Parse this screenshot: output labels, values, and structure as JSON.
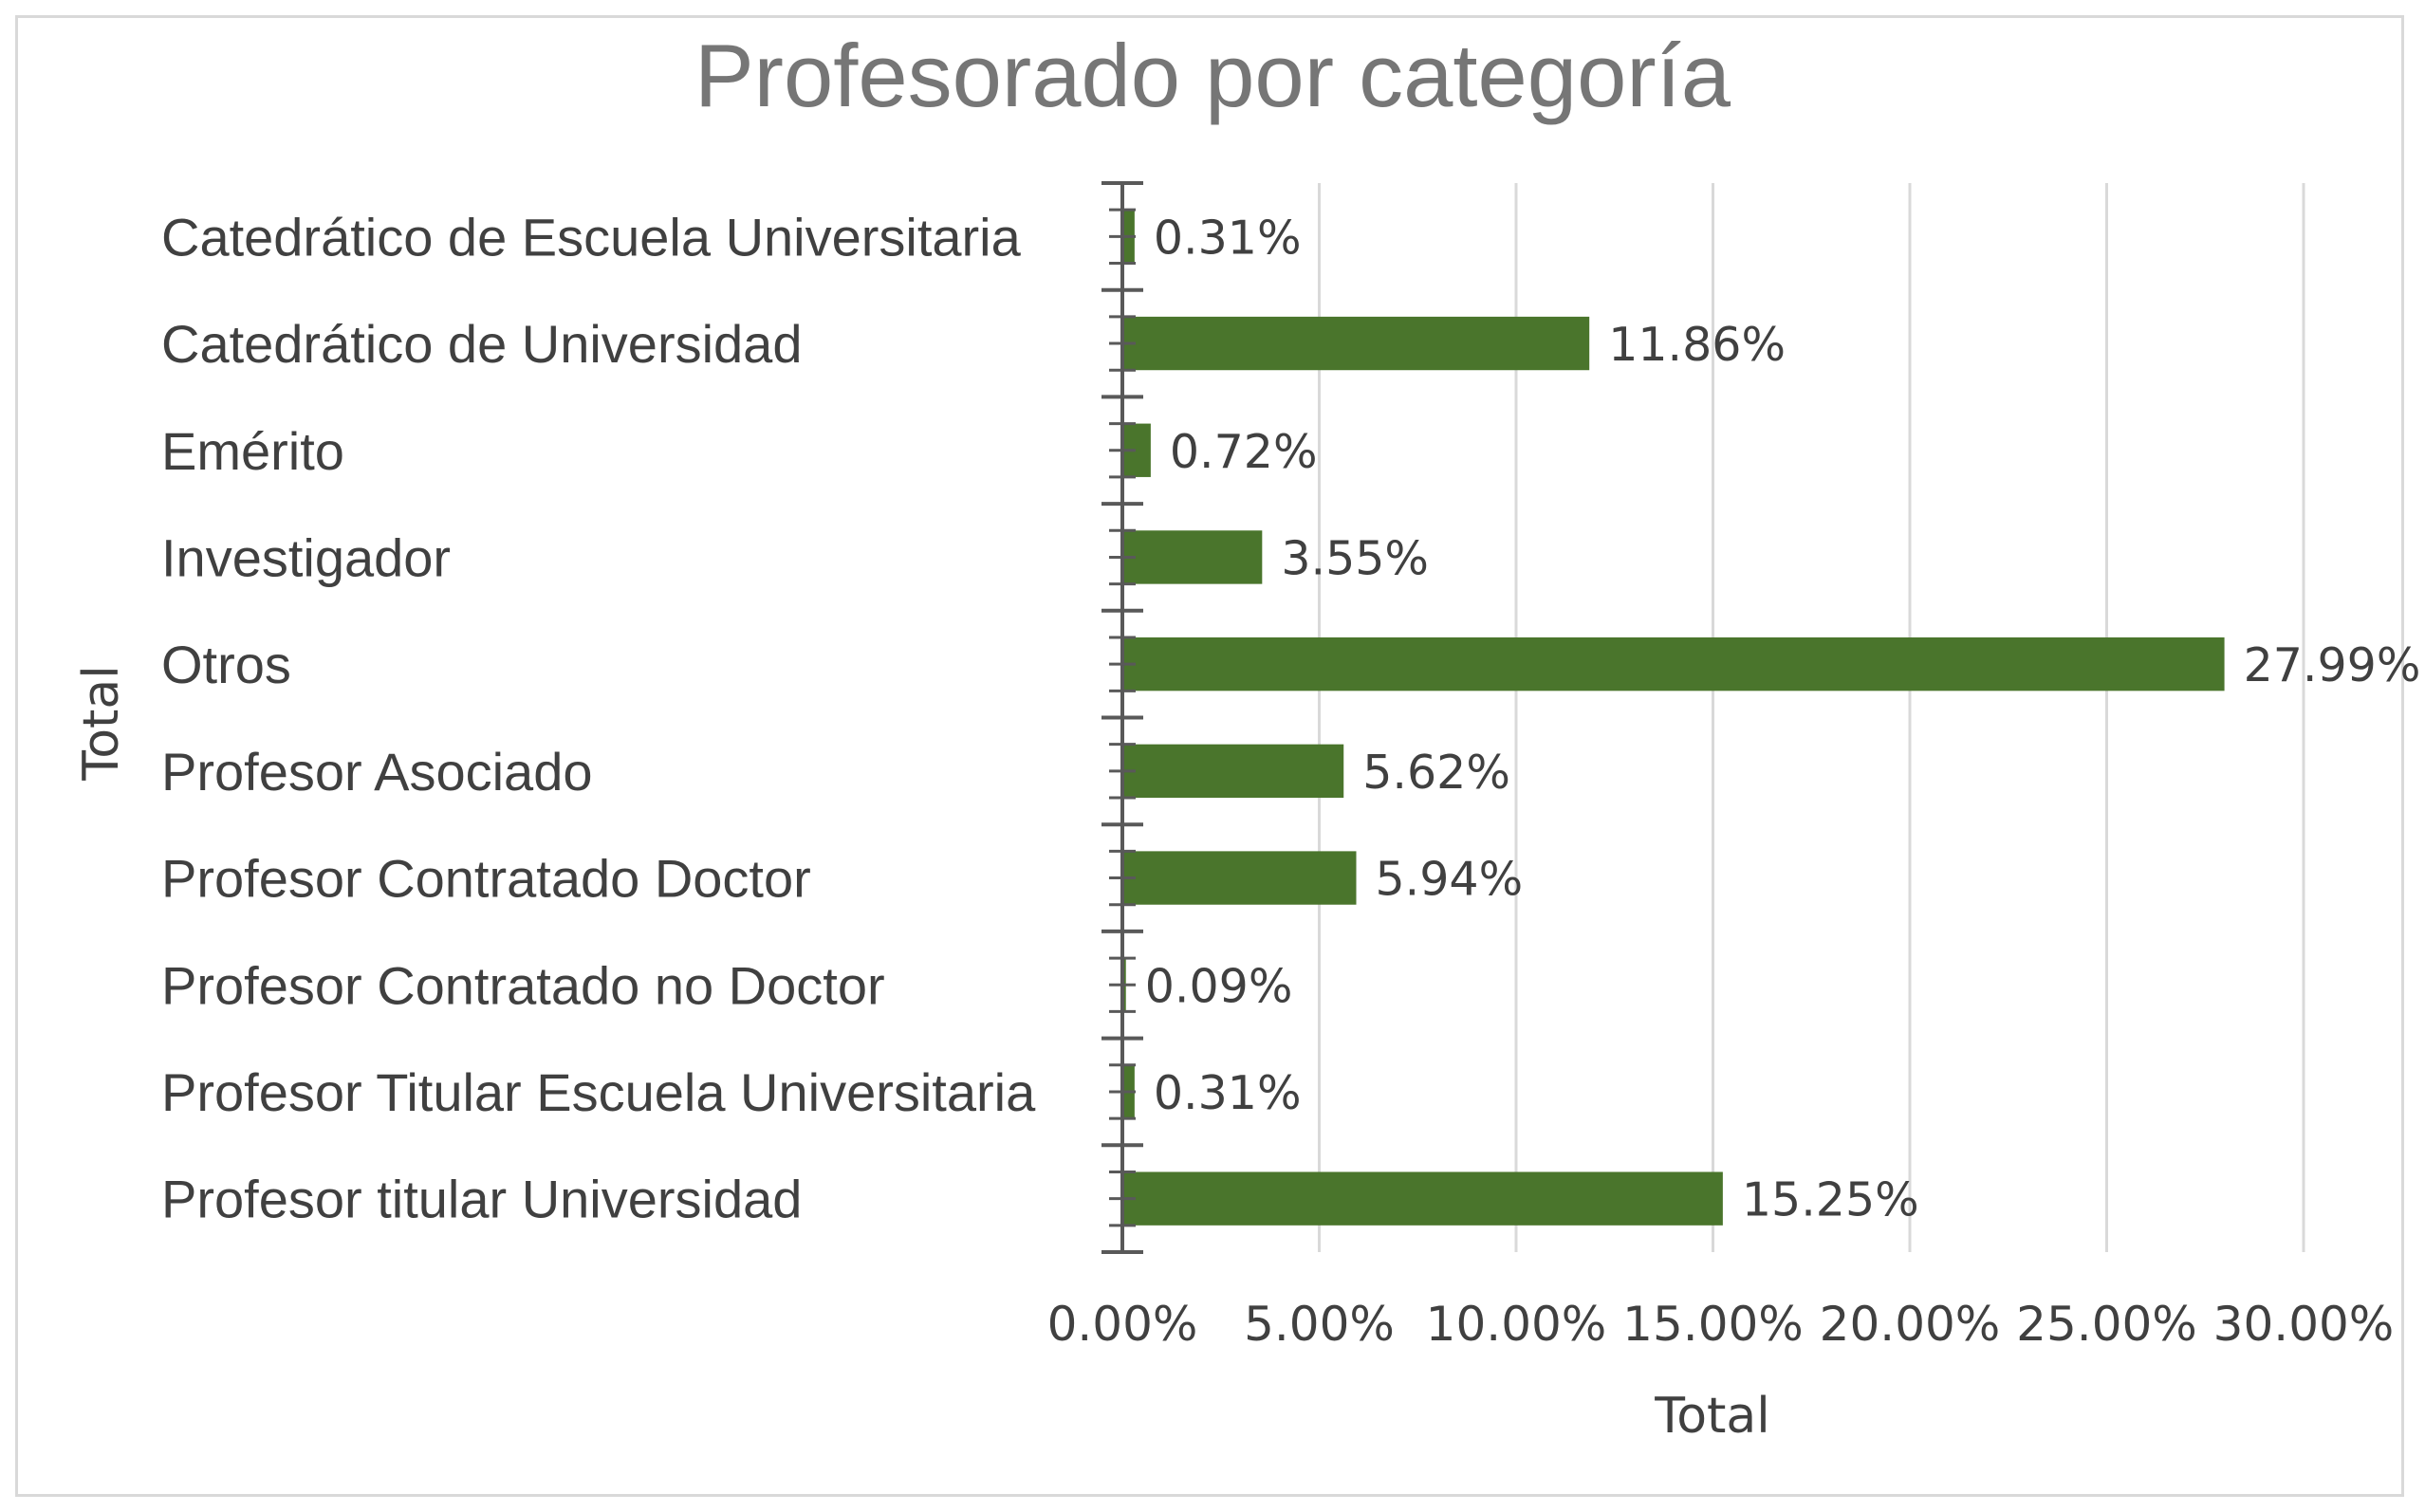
{
  "chart_data": {
    "type": "bar",
    "orientation": "horizontal",
    "title": "Profesorado por categoría",
    "xlabel": "Total",
    "ylabel": "Total",
    "categories": [
      "Catedrático de Escuela Universitaria",
      "Catedrático de Universidad",
      "Emérito",
      "Investigador",
      "Otros",
      "Profesor Asociado",
      "Profesor Contratado Doctor",
      "Profesor Contratado no Doctor",
      "Profesor Titular Escuela Universitaria",
      "Profesor titular Universidad"
    ],
    "values": [
      0.31,
      11.86,
      0.72,
      3.55,
      27.99,
      5.62,
      5.94,
      0.09,
      0.31,
      15.25
    ],
    "data_labels": [
      "0.31%",
      "11.86%",
      "0.72%",
      "3.55%",
      "27.99%",
      "5.62%",
      "5.94%",
      "0.09%",
      "0.31%",
      "15.25%"
    ],
    "xlim": [
      0,
      30
    ],
    "x_ticks": [
      0,
      5,
      10,
      15,
      20,
      25,
      30
    ],
    "x_tick_labels": [
      "0.00%",
      "5.00%",
      "10.00%",
      "15.00%",
      "20.00%",
      "25.00%",
      "30.00%"
    ],
    "grid": true,
    "legend": "none",
    "bar_color": "#4a752c",
    "grid_color": "#d9d9d9",
    "axis_color": "#595959"
  }
}
